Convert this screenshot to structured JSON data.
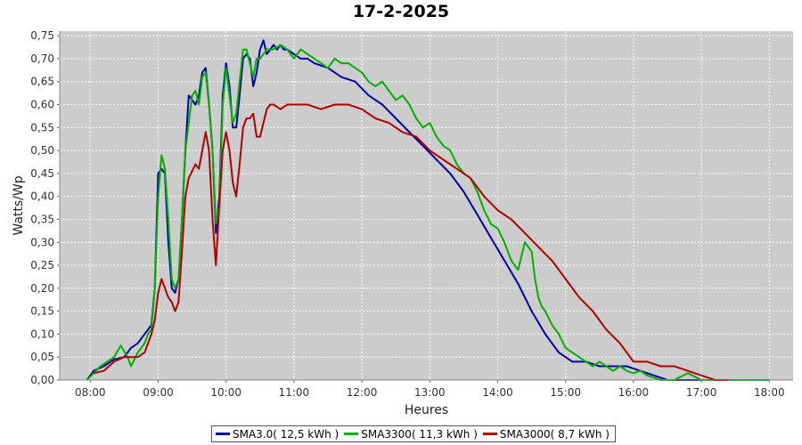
{
  "chart_data": {
    "type": "line",
    "title": "17-2-2025",
    "xlabel": "Heures",
    "ylabel": "Watts/Wp",
    "xlim": [
      7.55,
      18.35
    ],
    "ylim": [
      0,
      0.76
    ],
    "x_ticks": [
      "08:00",
      "09:00",
      "10:00",
      "11:00",
      "12:00",
      "13:00",
      "14:00",
      "15:00",
      "16:00",
      "17:00",
      "18:00"
    ],
    "y_ticks": [
      "0,00",
      "0,05",
      "0,10",
      "0,15",
      "0,20",
      "0,25",
      "0,30",
      "0,35",
      "0,40",
      "0,45",
      "0,50",
      "0,55",
      "0,60",
      "0,65",
      "0,70",
      "0,75"
    ],
    "grid": true,
    "background": "#cccccc",
    "legend_position": "bottom",
    "series": [
      {
        "name": "SMA3.0( 12,5 kWh )",
        "color": "#0000aa",
        "x": [
          7.95,
          8.05,
          8.2,
          8.35,
          8.5,
          8.6,
          8.7,
          8.8,
          8.85,
          8.9,
          8.95,
          9.0,
          9.05,
          9.1,
          9.15,
          9.2,
          9.25,
          9.3,
          9.35,
          9.4,
          9.45,
          9.55,
          9.6,
          9.65,
          9.7,
          9.75,
          9.8,
          9.85,
          9.9,
          9.95,
          10.0,
          10.05,
          10.1,
          10.15,
          10.2,
          10.25,
          10.3,
          10.35,
          10.4,
          10.45,
          10.5,
          10.55,
          10.6,
          10.65,
          10.7,
          10.75,
          10.8,
          10.85,
          10.9,
          11.0,
          11.1,
          11.2,
          11.3,
          11.5,
          11.7,
          11.9,
          12.1,
          12.3,
          12.5,
          12.7,
          12.9,
          13.1,
          13.3,
          13.5,
          13.7,
          13.9,
          14.1,
          14.3,
          14.5,
          14.7,
          14.9,
          15.1,
          15.3,
          15.5,
          15.7,
          15.9,
          16.1,
          16.3,
          16.5,
          16.7,
          16.9,
          17.1,
          17.3,
          17.4,
          17.5
        ],
        "values": [
          0.0,
          0.02,
          0.03,
          0.045,
          0.05,
          0.07,
          0.08,
          0.1,
          0.11,
          0.12,
          0.2,
          0.45,
          0.46,
          0.45,
          0.3,
          0.2,
          0.19,
          0.22,
          0.35,
          0.5,
          0.62,
          0.6,
          0.62,
          0.67,
          0.68,
          0.6,
          0.5,
          0.32,
          0.4,
          0.62,
          0.69,
          0.64,
          0.55,
          0.55,
          0.62,
          0.7,
          0.71,
          0.7,
          0.64,
          0.67,
          0.72,
          0.74,
          0.71,
          0.72,
          0.73,
          0.72,
          0.73,
          0.72,
          0.72,
          0.71,
          0.7,
          0.7,
          0.69,
          0.68,
          0.66,
          0.65,
          0.62,
          0.6,
          0.57,
          0.54,
          0.51,
          0.48,
          0.45,
          0.41,
          0.36,
          0.31,
          0.26,
          0.21,
          0.15,
          0.1,
          0.06,
          0.04,
          0.04,
          0.03,
          0.03,
          0.03,
          0.02,
          0.01,
          0.0,
          0.0,
          0.0,
          0.0,
          0.0,
          0.0,
          0.0
        ]
      },
      {
        "name": "SMA3300( 11,3 kWh )",
        "color": "#00b000",
        "x": [
          7.95,
          8.05,
          8.15,
          8.25,
          8.35,
          8.45,
          8.55,
          8.6,
          8.7,
          8.8,
          8.85,
          8.9,
          8.95,
          9.0,
          9.05,
          9.1,
          9.15,
          9.2,
          9.25,
          9.3,
          9.35,
          9.4,
          9.5,
          9.55,
          9.6,
          9.65,
          9.7,
          9.75,
          9.8,
          9.85,
          9.9,
          9.95,
          10.0,
          10.05,
          10.1,
          10.15,
          10.2,
          10.25,
          10.3,
          10.35,
          10.4,
          10.45,
          10.5,
          10.55,
          10.6,
          10.7,
          10.8,
          10.9,
          11.0,
          11.1,
          11.2,
          11.3,
          11.4,
          11.5,
          11.6,
          11.7,
          11.8,
          11.9,
          12.0,
          12.1,
          12.2,
          12.3,
          12.4,
          12.5,
          12.6,
          12.7,
          12.8,
          12.9,
          13.0,
          13.1,
          13.2,
          13.3,
          13.4,
          13.5,
          13.6,
          13.7,
          13.8,
          13.9,
          14.0,
          14.1,
          14.2,
          14.3,
          14.4,
          14.5,
          14.55,
          14.6,
          14.65,
          14.7,
          14.8,
          14.9,
          15.0,
          15.1,
          15.2,
          15.3,
          15.4,
          15.5,
          15.6,
          15.7,
          15.8,
          15.9,
          16.0,
          16.1,
          16.2,
          16.4,
          16.6,
          16.8,
          17.0,
          17.2,
          17.4,
          17.6,
          17.7,
          18.0
        ],
        "values": [
          0.0,
          0.015,
          0.03,
          0.04,
          0.05,
          0.075,
          0.05,
          0.03,
          0.06,
          0.08,
          0.1,
          0.11,
          0.2,
          0.4,
          0.49,
          0.46,
          0.35,
          0.22,
          0.2,
          0.22,
          0.35,
          0.5,
          0.62,
          0.63,
          0.6,
          0.66,
          0.67,
          0.6,
          0.5,
          0.34,
          0.38,
          0.6,
          0.68,
          0.62,
          0.56,
          0.58,
          0.65,
          0.72,
          0.72,
          0.69,
          0.66,
          0.7,
          0.7,
          0.71,
          0.72,
          0.72,
          0.73,
          0.72,
          0.7,
          0.72,
          0.71,
          0.7,
          0.69,
          0.68,
          0.7,
          0.69,
          0.69,
          0.68,
          0.67,
          0.65,
          0.64,
          0.65,
          0.63,
          0.61,
          0.62,
          0.6,
          0.57,
          0.55,
          0.56,
          0.53,
          0.51,
          0.5,
          0.47,
          0.45,
          0.44,
          0.41,
          0.37,
          0.34,
          0.33,
          0.3,
          0.26,
          0.24,
          0.3,
          0.28,
          0.22,
          0.18,
          0.16,
          0.15,
          0.12,
          0.1,
          0.07,
          0.06,
          0.05,
          0.04,
          0.03,
          0.04,
          0.03,
          0.02,
          0.03,
          0.02,
          0.015,
          0.02,
          0.01,
          0.0,
          0.0,
          0.015,
          0.0,
          0.0,
          0.0,
          0.0,
          0.0,
          0.0
        ]
      },
      {
        "name": "SMA3000( 8,7 kWh )",
        "color": "#b00000",
        "x": [
          8.05,
          8.2,
          8.35,
          8.5,
          8.7,
          8.8,
          8.9,
          8.95,
          9.0,
          9.05,
          9.1,
          9.15,
          9.2,
          9.25,
          9.3,
          9.35,
          9.4,
          9.45,
          9.55,
          9.6,
          9.65,
          9.7,
          9.75,
          9.8,
          9.85,
          9.9,
          9.95,
          10.0,
          10.05,
          10.1,
          10.15,
          10.2,
          10.25,
          10.3,
          10.35,
          10.4,
          10.45,
          10.5,
          10.55,
          10.6,
          10.65,
          10.7,
          10.8,
          10.9,
          11.0,
          11.2,
          11.4,
          11.6,
          11.8,
          12.0,
          12.2,
          12.4,
          12.6,
          12.8,
          13.0,
          13.2,
          13.4,
          13.6,
          13.8,
          14.0,
          14.2,
          14.4,
          14.6,
          14.8,
          15.0,
          15.2,
          15.4,
          15.6,
          15.8,
          16.0,
          16.2,
          16.4,
          16.6,
          16.8,
          17.0,
          17.2,
          17.4
        ],
        "values": [
          0.015,
          0.02,
          0.04,
          0.05,
          0.05,
          0.06,
          0.1,
          0.13,
          0.19,
          0.22,
          0.2,
          0.18,
          0.17,
          0.15,
          0.17,
          0.28,
          0.4,
          0.44,
          0.47,
          0.46,
          0.5,
          0.54,
          0.5,
          0.35,
          0.25,
          0.38,
          0.5,
          0.54,
          0.5,
          0.43,
          0.4,
          0.47,
          0.55,
          0.57,
          0.57,
          0.58,
          0.53,
          0.53,
          0.56,
          0.59,
          0.6,
          0.6,
          0.59,
          0.6,
          0.6,
          0.6,
          0.59,
          0.6,
          0.6,
          0.59,
          0.57,
          0.56,
          0.54,
          0.53,
          0.5,
          0.48,
          0.46,
          0.44,
          0.4,
          0.37,
          0.35,
          0.32,
          0.29,
          0.26,
          0.22,
          0.18,
          0.15,
          0.11,
          0.08,
          0.04,
          0.04,
          0.03,
          0.03,
          0.02,
          0.01,
          0.0,
          0.0
        ]
      }
    ]
  }
}
